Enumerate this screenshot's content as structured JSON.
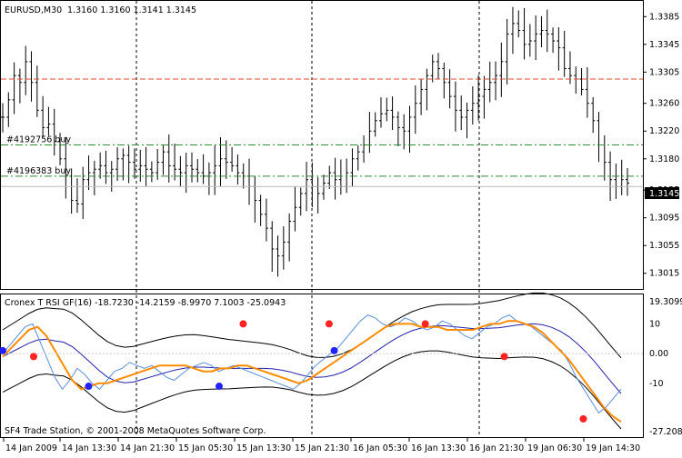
{
  "header": {
    "symbol": "EURUSD,M30",
    "ohlc": "1.3160 1.3160 1.3141 1.3145"
  },
  "price_axis": {
    "labels": [
      "1.3385",
      "1.3345",
      "1.3305",
      "1.3260",
      "1.3220",
      "1.3180",
      "1.3135",
      "1.3095",
      "1.3055",
      "1.3015"
    ],
    "current_price": "1.3145",
    "current_bg": "#000000",
    "current_fg": "#ffffff"
  },
  "orders": [
    {
      "label": "#4192756 buy",
      "price": 1.32,
      "color": "#2e8b2e"
    },
    {
      "label": "#4196383 buy",
      "price": 1.3155,
      "color": "#2e8b2e"
    }
  ],
  "stop_level": {
    "price": 1.3295,
    "color": "#e04a2a"
  },
  "indicator": {
    "title": "Cronex T RSI GF(16) -18.7230 -14.2159 -8.9970 7.1003 -25.0943",
    "axis_labels": [
      "19.3099",
      "10",
      "0.00",
      "-10",
      "-27.2088"
    ],
    "colors": {
      "rsi": "#5b8fd8",
      "signal": "#ff8c00",
      "mid": "#2222aa",
      "band": "#000000",
      "buy_dot": "#2222ff",
      "sell_dot": "#ff2222"
    }
  },
  "footer": {
    "copyright": "SF4 Trade Station, © 2001-2008 MetaQuotes Software Corp."
  },
  "time_axis": {
    "labels": [
      "14 Jan 2009",
      "14 Jan 13:30",
      "14 Jan 21:30",
      "15 Jan 05:30",
      "15 Jan 13:30",
      "15 Jan 21:30",
      "16 Jan 05:30",
      "16 Jan 13:30",
      "16 Jan 21:30",
      "19 Jan 06:30",
      "19 Jan 14:30"
    ]
  },
  "chart_data": {
    "type": "candlestick-ohlc",
    "symbol": "EURUSD",
    "timeframe": "M30",
    "y_range": [
      1.2995,
      1.3405
    ],
    "last_price": 1.3145,
    "price_path": [
      1.324,
      1.3265,
      1.33,
      1.329,
      1.332,
      1.329,
      1.325,
      1.3225,
      1.323,
      1.3205,
      1.318,
      1.3155,
      1.312,
      1.3115,
      1.315,
      1.316,
      1.3165,
      1.317,
      1.316,
      1.3165,
      1.318,
      1.3185,
      1.3175,
      1.3165,
      1.317,
      1.3165,
      1.316,
      1.3175,
      1.319,
      1.317,
      1.3165,
      1.316,
      1.317,
      1.3165,
      1.316,
      1.3155,
      1.316,
      1.317,
      1.318,
      1.3175,
      1.317,
      1.316,
      1.3155,
      1.314,
      1.312,
      1.31,
      1.308,
      1.305,
      1.304,
      1.306,
      1.309,
      1.311,
      1.313,
      1.315,
      1.314,
      1.313,
      1.3145,
      1.316,
      1.315,
      1.314,
      1.316,
      1.318,
      1.319,
      1.32,
      1.322,
      1.3235,
      1.3245,
      1.325,
      1.324,
      1.3225,
      1.322,
      1.324,
      1.326,
      1.328,
      1.33,
      1.332,
      1.331,
      1.329,
      1.327,
      1.325,
      1.324,
      1.325,
      1.326,
      1.327,
      1.328,
      1.329,
      1.33,
      1.332,
      1.336,
      1.3375,
      1.3365,
      1.3345,
      1.335,
      1.336,
      1.3365,
      1.336,
      1.335,
      1.334,
      1.331,
      1.33,
      1.3295,
      1.328,
      1.326,
      1.3235,
      1.32,
      1.3175,
      1.315,
      1.314,
      1.315,
      1.3145
    ]
  },
  "indicator_data": {
    "y_range": [
      -27.2088,
      19.3099
    ],
    "rsi_path": [
      0,
      3,
      6,
      9,
      10,
      4,
      -2,
      -8,
      -12,
      -9,
      -5,
      -7,
      -10,
      -12,
      -9,
      -6,
      -5,
      -3,
      -4,
      -5,
      -4,
      -6,
      -8,
      -9,
      -7,
      -5,
      -4,
      -3,
      -4,
      -6,
      -5,
      -4,
      -5,
      -6,
      -7,
      -8,
      -9,
      -10,
      -11,
      -12,
      -10,
      -7,
      -4,
      -2,
      0,
      2,
      5,
      8,
      11,
      13,
      12,
      10,
      9,
      10,
      12,
      11,
      9,
      8,
      9,
      11,
      10,
      8,
      6,
      5,
      7,
      9,
      10,
      12,
      13,
      11,
      10,
      9,
      7,
      5,
      3,
      1,
      -3,
      -8,
      -12,
      -16,
      -20,
      -18,
      -15,
      -12
    ],
    "signal_path": [
      -1,
      2,
      5,
      8,
      9,
      6,
      1,
      -4,
      -9,
      -12,
      -11,
      -10,
      -10,
      -9,
      -8,
      -7,
      -6,
      -5,
      -4,
      -4,
      -4,
      -4,
      -5,
      -6,
      -6,
      -5,
      -5,
      -4,
      -4,
      -5,
      -6,
      -7,
      -8,
      -9,
      -10,
      -9,
      -7,
      -5,
      -3,
      -1,
      1,
      3,
      5,
      7,
      9,
      10,
      10,
      10,
      9,
      9,
      9,
      8,
      8,
      8,
      8,
      9,
      10,
      10,
      11,
      11,
      10,
      9,
      7,
      4,
      1,
      -2,
      -6,
      -10,
      -14,
      -18,
      -21,
      -23
    ],
    "sell_signals": [
      [
        9,
        -1
      ],
      [
        70,
        10
      ],
      [
        95,
        10
      ],
      [
        123,
        10
      ],
      [
        146,
        -1
      ],
      [
        169,
        -22
      ]
    ],
    "buy_signals": [
      [
        0,
        1
      ],
      [
        25,
        -11
      ],
      [
        63,
        -11
      ],
      [
        74,
        1
      ]
    ]
  }
}
